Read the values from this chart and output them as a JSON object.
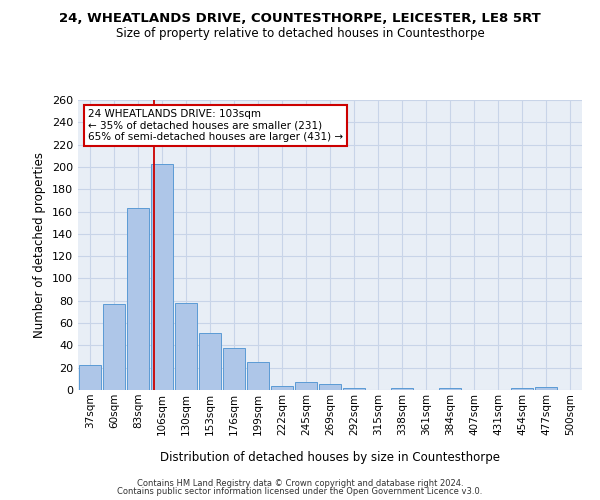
{
  "title1": "24, WHEATLANDS DRIVE, COUNTESTHORPE, LEICESTER, LE8 5RT",
  "title2": "Size of property relative to detached houses in Countesthorpe",
  "xlabel": "Distribution of detached houses by size in Countesthorpe",
  "ylabel": "Number of detached properties",
  "bar_labels": [
    "37sqm",
    "60sqm",
    "83sqm",
    "106sqm",
    "130sqm",
    "153sqm",
    "176sqm",
    "199sqm",
    "222sqm",
    "245sqm",
    "269sqm",
    "292sqm",
    "315sqm",
    "338sqm",
    "361sqm",
    "384sqm",
    "407sqm",
    "431sqm",
    "454sqm",
    "477sqm",
    "500sqm"
  ],
  "bar_heights": [
    22,
    77,
    163,
    203,
    78,
    51,
    38,
    25,
    4,
    7,
    5,
    2,
    0,
    2,
    0,
    2,
    0,
    0,
    2,
    3,
    0
  ],
  "bar_color": "#aec6e8",
  "bar_edge_color": "#5b9bd5",
  "background_color": "#ffffff",
  "ax_background": "#e8eef6",
  "grid_color": "#c8d4e8",
  "vline_x": 2.65,
  "vline_color": "#cc0000",
  "annotation_text": "24 WHEATLANDS DRIVE: 103sqm\n← 35% of detached houses are smaller (231)\n65% of semi-detached houses are larger (431) →",
  "annotation_box_color": "#ffffff",
  "annotation_box_edge": "#cc0000",
  "ylim": [
    0,
    260
  ],
  "yticks": [
    0,
    20,
    40,
    60,
    80,
    100,
    120,
    140,
    160,
    180,
    200,
    220,
    240,
    260
  ],
  "footer1": "Contains HM Land Registry data © Crown copyright and database right 2024.",
  "footer2": "Contains public sector information licensed under the Open Government Licence v3.0."
}
